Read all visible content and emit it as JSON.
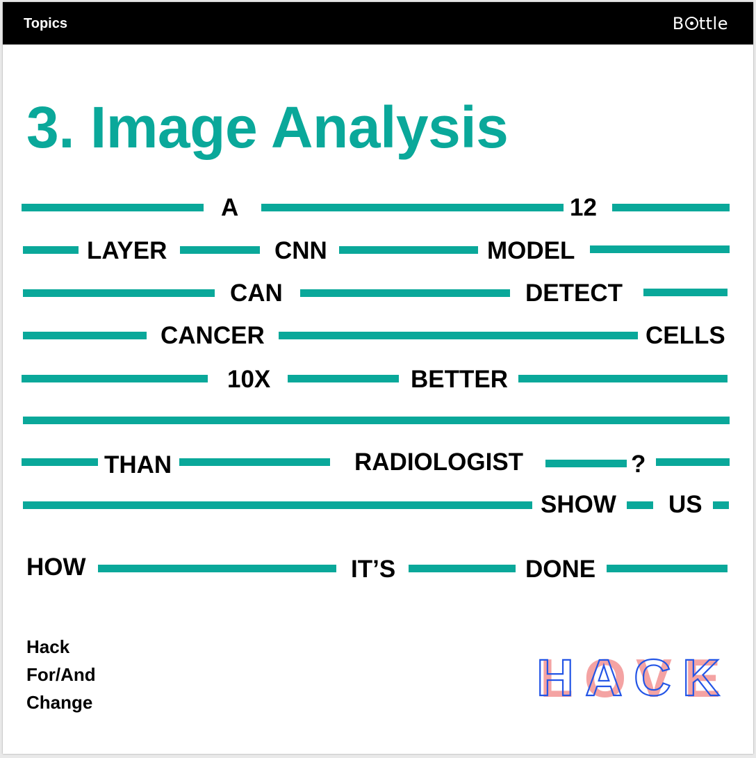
{
  "header": {
    "topics_label": "Topics",
    "brand_prefix": "B",
    "brand_suffix": "ttle"
  },
  "title": "3. Image Analysis",
  "sentence_words": {
    "w1": "A",
    "w2": "12",
    "w3": "LAYER",
    "w4": "CNN",
    "w5": "MODEL",
    "w6": "CAN",
    "w7": "DETECT",
    "w8": "CANCER",
    "w9": "CELLS",
    "w10": "10X",
    "w11": "BETTER",
    "w12": "THAN",
    "w13": "RADIOLOGIST",
    "w14": "?",
    "w15": "SHOW",
    "w16": "US",
    "w17": "HOW",
    "w18": "IT’S",
    "w19": "DONE"
  },
  "footer": {
    "line1": "Hack",
    "line2": "For/And",
    "line3": "Change",
    "logo_letters": "HACK",
    "logo_back_letters": "LOVE"
  },
  "colors": {
    "accent": "#0aa89a",
    "topbar": "#000000",
    "logo_pink": "#f4a3a3",
    "logo_blue": "#2355e6"
  }
}
